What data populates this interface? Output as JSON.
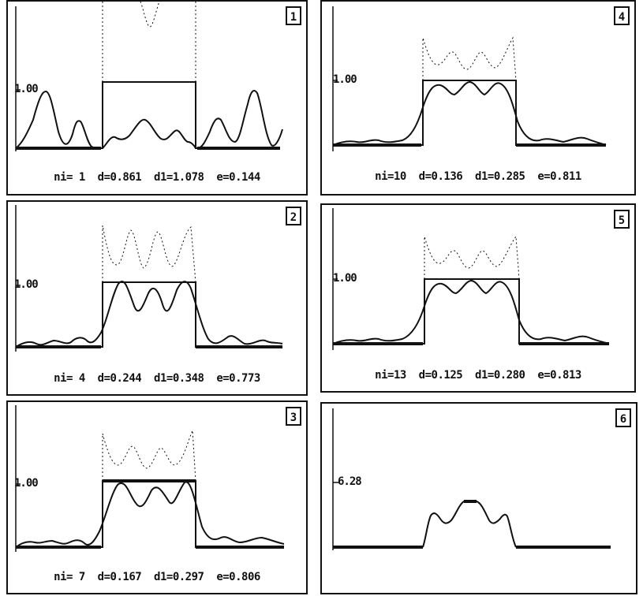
{
  "panels": [
    {
      "id": "1",
      "number": "1",
      "ylabel": "1.00",
      "caption": "ni= 1  d=0.861  d1=1.078  e=0.144"
    },
    {
      "id": "2",
      "number": "2",
      "ylabel": "1.00",
      "caption": "ni= 4  d=0.244  d1=0.348  e=0.773"
    },
    {
      "id": "3",
      "number": "3",
      "ylabel": "1.00",
      "caption": "ni= 7  d=0.167  d1=0.297  e=0.806"
    },
    {
      "id": "4",
      "number": "4",
      "ylabel": "1.00",
      "caption": "ni=10  d=0.136  d1=0.285  e=0.811"
    },
    {
      "id": "5",
      "number": "5",
      "ylabel": "1.00",
      "caption": "ni=13  d=0.125  d1=0.280  e=0.813"
    },
    {
      "id": "6",
      "number": "6",
      "ylabel": "6.28",
      "caption": ""
    }
  ]
}
